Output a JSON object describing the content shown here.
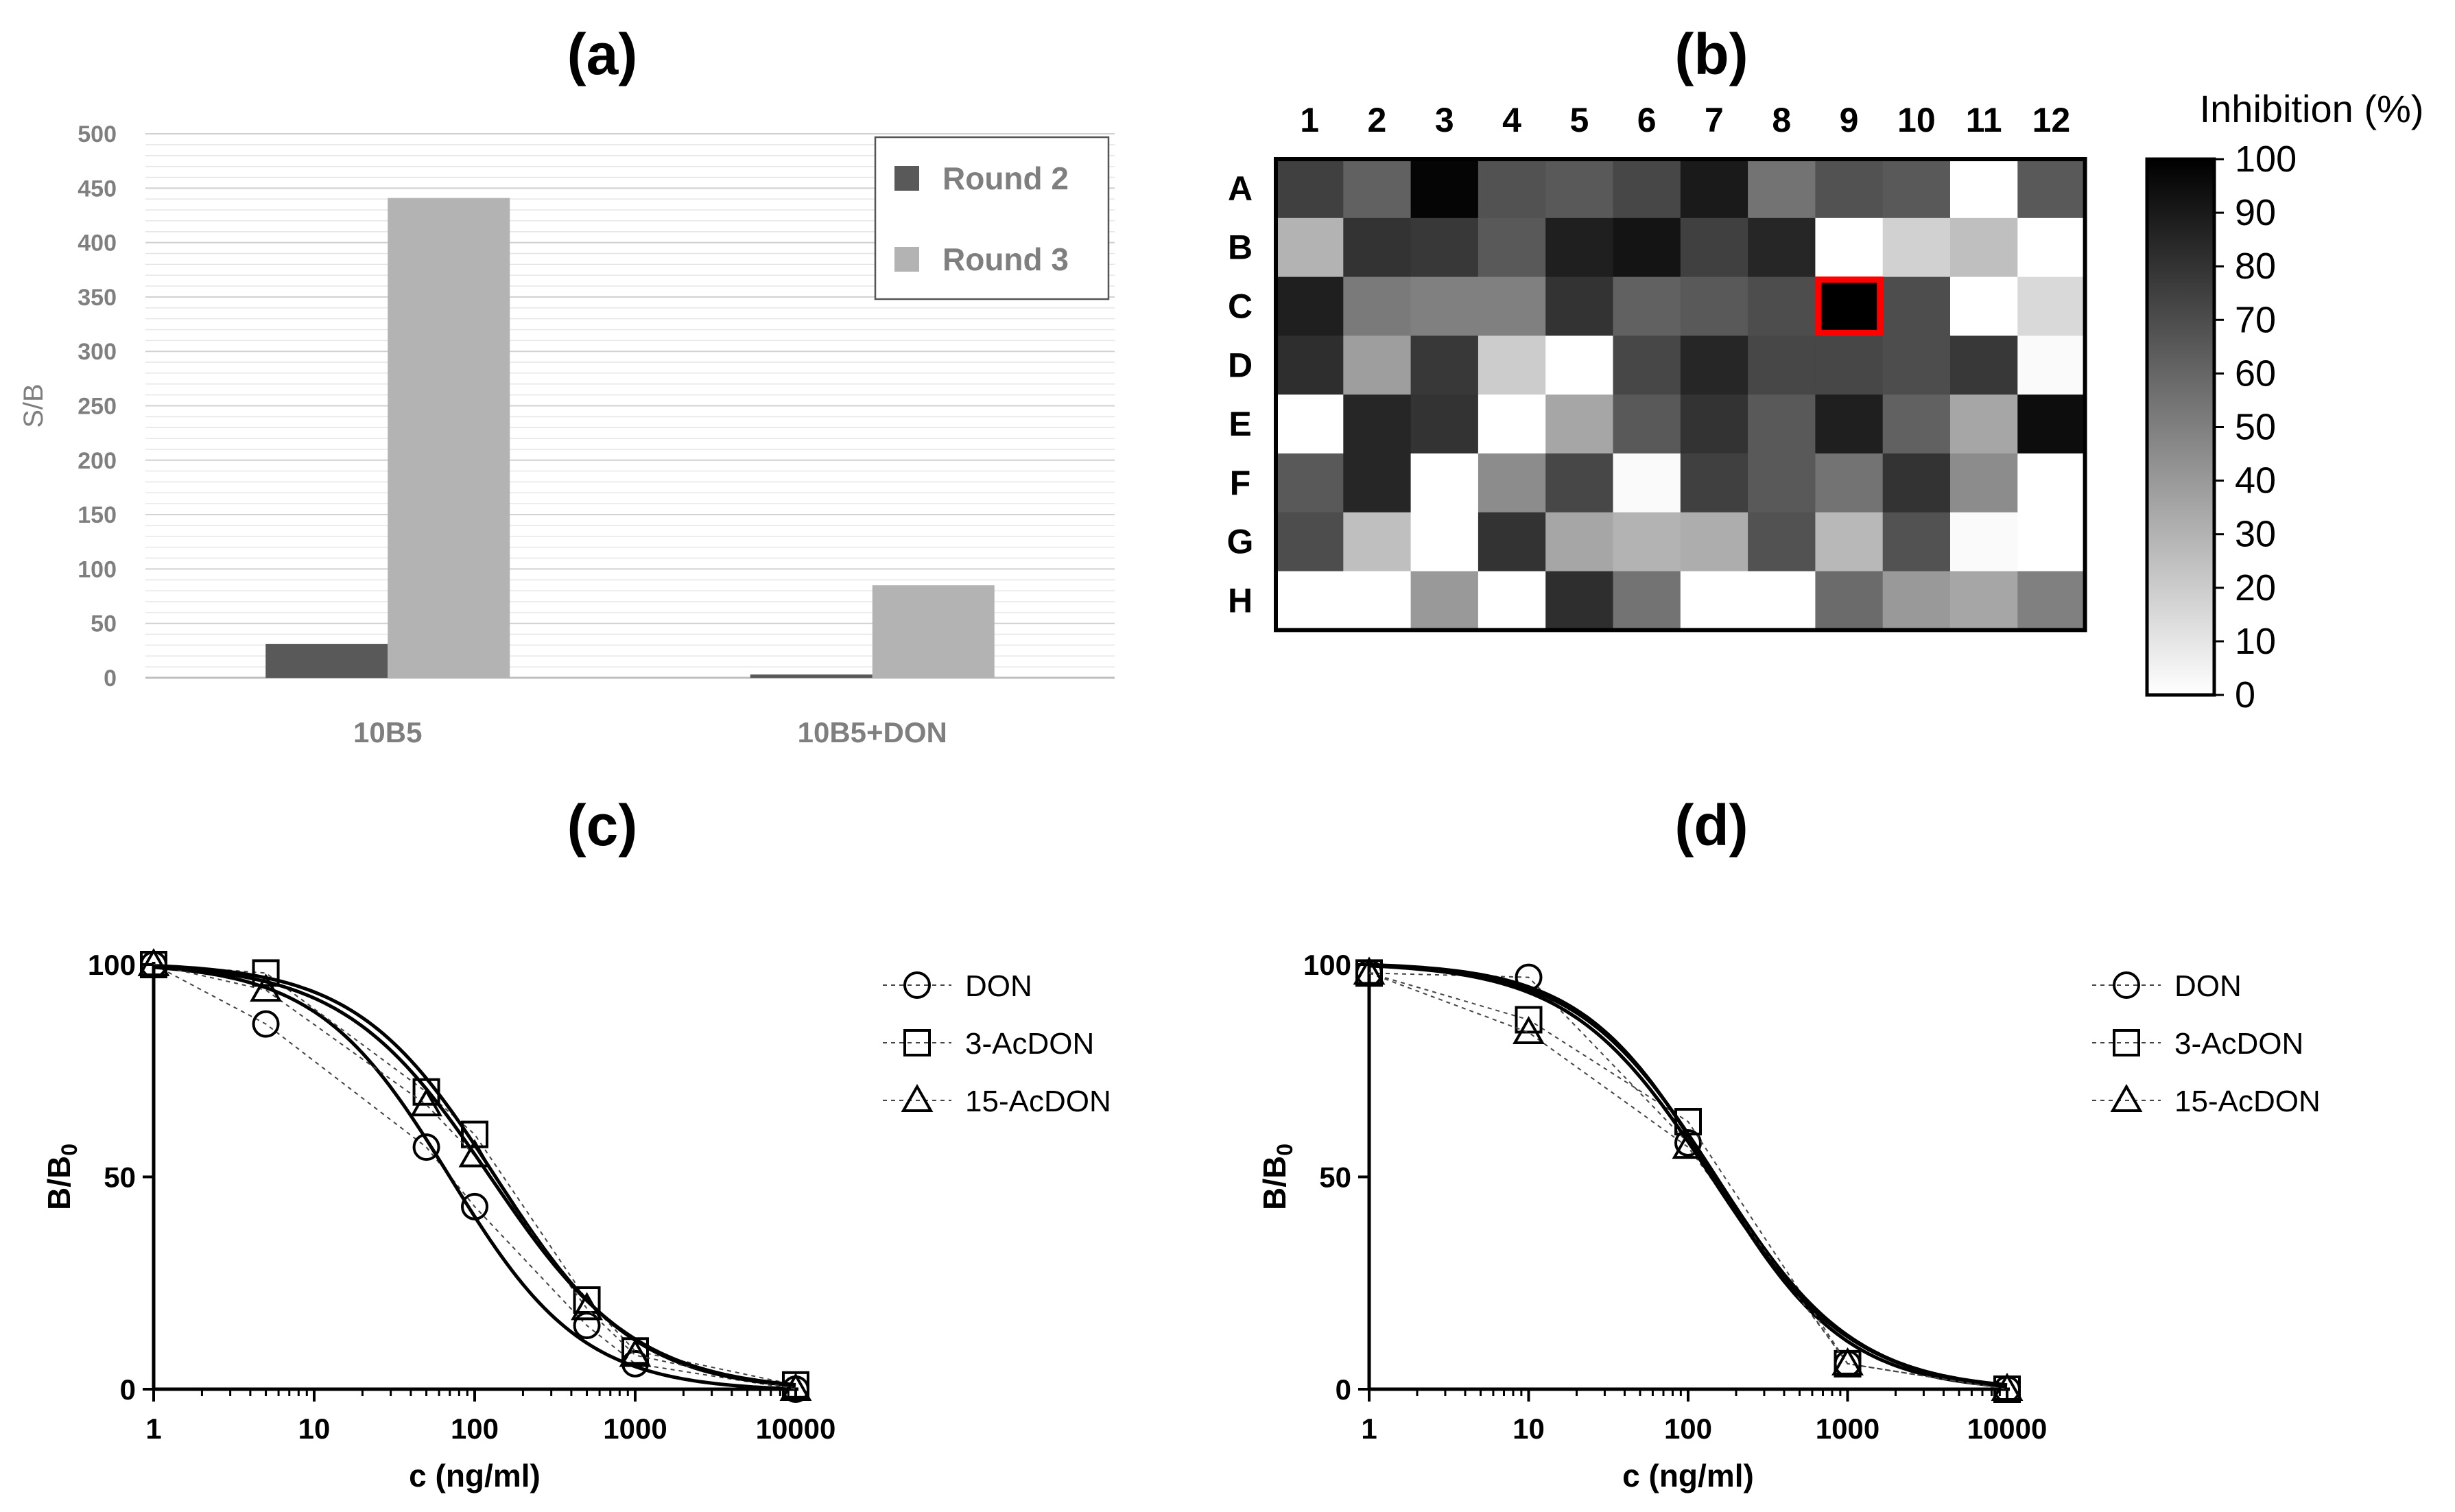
{
  "panels": {
    "a": {
      "label": "(a)"
    },
    "b": {
      "label": "(b)"
    },
    "c": {
      "label": "(c)"
    },
    "d": {
      "label": "(d)"
    }
  },
  "chart_data": [
    {
      "id": "a",
      "type": "bar",
      "title": "(a)",
      "categories": [
        "10B5",
        "10B5+DON"
      ],
      "series": [
        {
          "name": "Round 2",
          "color": "#595959",
          "values": [
            31,
            3
          ]
        },
        {
          "name": "Round 3",
          "color": "#b3b3b3",
          "values": [
            441,
            85
          ]
        }
      ],
      "ylabel": "S/B",
      "xlabel": "",
      "ylim": [
        0,
        500
      ],
      "yticks": [
        0,
        50,
        100,
        150,
        200,
        250,
        300,
        350,
        400,
        450,
        500
      ],
      "grid": true,
      "legend": "top-right"
    },
    {
      "id": "b",
      "type": "heatmap",
      "title": "(b)",
      "columns": [
        "1",
        "2",
        "3",
        "4",
        "5",
        "6",
        "7",
        "8",
        "9",
        "10",
        "11",
        "12"
      ],
      "rows": [
        "A",
        "B",
        "C",
        "D",
        "E",
        "F",
        "G",
        "H"
      ],
      "values": [
        [
          75,
          62,
          98,
          68,
          65,
          72,
          90,
          55,
          68,
          65,
          0,
          65
        ],
        [
          30,
          80,
          78,
          65,
          88,
          92,
          75,
          85,
          0,
          18,
          25,
          0
        ],
        [
          88,
          52,
          50,
          50,
          80,
          62,
          65,
          70,
          100,
          70,
          0,
          15
        ],
        [
          82,
          38,
          78,
          20,
          0,
          72,
          85,
          72,
          72,
          70,
          78,
          2
        ],
        [
          0,
          85,
          80,
          0,
          35,
          65,
          80,
          65,
          88,
          62,
          35,
          95
        ],
        [
          65,
          85,
          0,
          45,
          72,
          2,
          75,
          65,
          55,
          80,
          45,
          0
        ],
        [
          70,
          25,
          0,
          80,
          35,
          30,
          32,
          68,
          28,
          68,
          2,
          0
        ],
        [
          0,
          0,
          40,
          0,
          82,
          55,
          0,
          0,
          58,
          40,
          35,
          50
        ]
      ],
      "highlight": {
        "row": "C",
        "column": "9",
        "color": "#ff0000"
      },
      "colorbar": {
        "label": "Inhibition (%)",
        "ticks": [
          0,
          10,
          20,
          30,
          40,
          50,
          60,
          70,
          80,
          90,
          100
        ],
        "range": [
          0,
          100
        ]
      }
    },
    {
      "id": "c",
      "type": "line",
      "title": "(c)",
      "xlabel": "c (ng/ml)",
      "ylabel": "B/B0",
      "xscale": "log",
      "xlim": [
        1,
        10000
      ],
      "ylim": [
        0,
        100
      ],
      "xticks": [
        "1",
        "10",
        "100",
        "1000",
        "10000"
      ],
      "yticks": [
        "0",
        "50",
        "100"
      ],
      "legend": "right",
      "series": [
        {
          "name": "DON",
          "marker": "circle",
          "x": [
            1,
            5,
            50,
            100,
            500,
            1000,
            10000
          ],
          "y": [
            100,
            86,
            57,
            43,
            15,
            6,
            0
          ],
          "fit": {
            "ic50": 70,
            "hill": 1.05
          }
        },
        {
          "name": "3-AcDON",
          "marker": "square",
          "x": [
            1,
            5,
            50,
            100,
            500,
            1000,
            10000
          ],
          "y": [
            100,
            98,
            70,
            60,
            21,
            9,
            1
          ],
          "fit": {
            "ic50": 135,
            "hill": 1.0
          }
        },
        {
          "name": "15-AcDON",
          "marker": "triangle",
          "x": [
            1,
            5,
            50,
            100,
            500,
            1000,
            10000
          ],
          "y": [
            100,
            94,
            67,
            55,
            19,
            8,
            0
          ],
          "fit": {
            "ic50": 125,
            "hill": 0.95
          }
        }
      ]
    },
    {
      "id": "d",
      "type": "line",
      "title": "(d)",
      "xlabel": "c (ng/ml)",
      "ylabel": "B/B0",
      "xscale": "log",
      "xlim": [
        1,
        10000
      ],
      "ylim": [
        0,
        100
      ],
      "xticks": [
        "1",
        "10",
        "100",
        "1000",
        "10000"
      ],
      "yticks": [
        "0",
        "50",
        "100"
      ],
      "legend": "right",
      "series": [
        {
          "name": "DON",
          "marker": "circle",
          "x": [
            1,
            10,
            100,
            1000,
            10000
          ],
          "y": [
            98,
            97,
            58,
            6,
            0
          ],
          "fit": {
            "ic50": 145,
            "hill": 1.05
          }
        },
        {
          "name": "3-AcDON",
          "marker": "square",
          "x": [
            1,
            10,
            100,
            1000,
            10000
          ],
          "y": [
            98,
            87,
            63,
            6,
            0
          ],
          "fit": {
            "ic50": 150,
            "hill": 1.0
          }
        },
        {
          "name": "15-AcDON",
          "marker": "triangle",
          "x": [
            1,
            10,
            100,
            1000,
            10000
          ],
          "y": [
            98,
            84,
            57,
            6,
            0
          ],
          "fit": {
            "ic50": 140,
            "hill": 0.98
          }
        }
      ]
    }
  ]
}
